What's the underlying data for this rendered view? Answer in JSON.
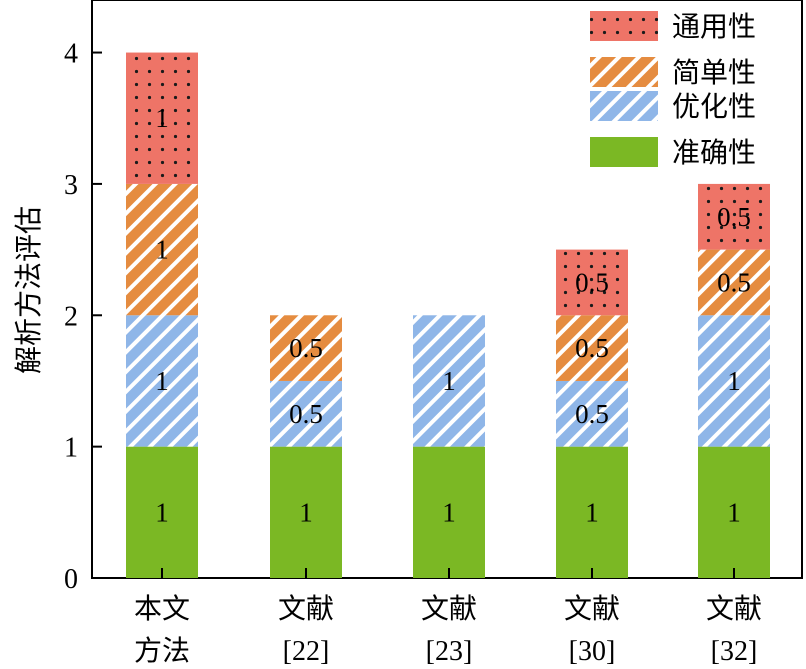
{
  "chart_data": {
    "type": "bar",
    "stacked": true,
    "categories": [
      [
        "本文",
        "方法"
      ],
      [
        "文献",
        "[22]"
      ],
      [
        "文献",
        "[23]"
      ],
      [
        "文献",
        "[30]"
      ],
      [
        "文献",
        "[32]"
      ]
    ],
    "series": [
      {
        "name": "准确性",
        "values": [
          1,
          1,
          1,
          1,
          1
        ],
        "labels": [
          "1",
          "1",
          "1",
          "1",
          "1"
        ],
        "color": "#7bb824",
        "pattern": "solid"
      },
      {
        "name": "优化性",
        "values": [
          1,
          0.5,
          1,
          0.5,
          1
        ],
        "labels": [
          "1",
          "0.5",
          "1",
          "0.5",
          "1"
        ],
        "color": "#8fb6e8",
        "pattern": "diagonal"
      },
      {
        "name": "简单性",
        "values": [
          1,
          0.5,
          0,
          0.5,
          0.5
        ],
        "labels": [
          "1",
          "0.5",
          "",
          "0.5",
          "0.5"
        ],
        "color": "#e58c40",
        "pattern": "diagonal"
      },
      {
        "name": "通用性",
        "values": [
          1,
          0,
          0,
          0.5,
          0.5
        ],
        "labels": [
          "1",
          "",
          "",
          "0.5",
          "0.5"
        ],
        "color": "#ee7467",
        "pattern": "dots"
      }
    ],
    "legend_order": [
      3,
      2,
      1,
      0
    ],
    "ylabel": "解析方法评估",
    "xlabel": "",
    "ylim": [
      0,
      4.4
    ],
    "yticks": [
      0,
      1,
      2,
      3,
      4
    ],
    "ytick_labels": [
      "0",
      "1",
      "2",
      "3",
      "4"
    ],
    "legend_position": "top-right",
    "grid": false
  }
}
